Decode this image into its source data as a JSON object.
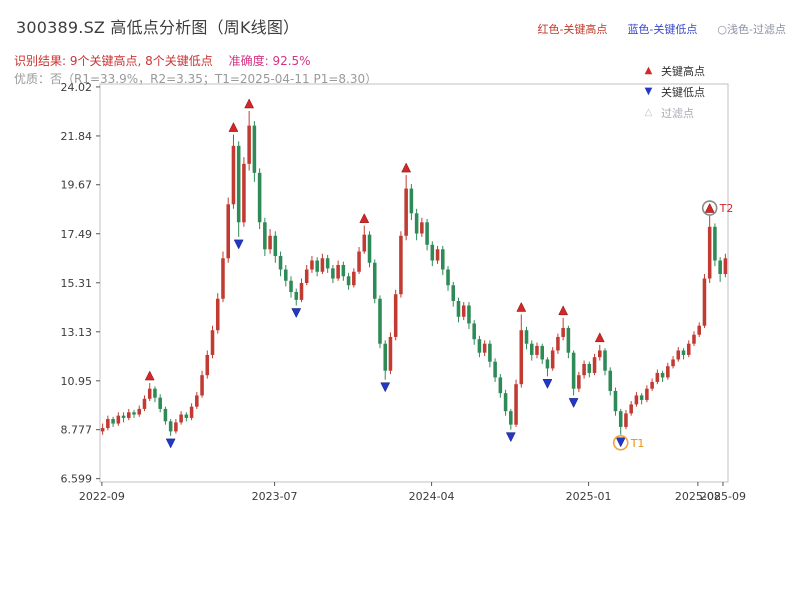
{
  "header": {
    "title": "300389.SZ 高低点分析图（周K线图）",
    "legend_top": [
      {
        "label": "红色-关键高点",
        "color": "#c0392b"
      },
      {
        "label": "蓝色-关键低点",
        "color": "#3b48c8"
      },
      {
        "label": "○浅色-过滤点",
        "color": "#8b8fa3"
      }
    ],
    "result_text": "识别结果: 9个关键高点, 8个关键低点",
    "accuracy_text": "准确度: 92.5%",
    "quality_line": "优质：否（R1=33.9%，R2=3.35；T1=2025-04-11 P1=8.30）"
  },
  "chart_data": {
    "type": "candlestick",
    "title": "300389.SZ 高低点分析图（周K线图）",
    "xlabel": "",
    "ylabel": "",
    "ylim": [
      6.45,
      24.15
    ],
    "grid": false,
    "legend_position": "top-right-inside",
    "yticks": [
      "24.02",
      "21.84",
      "19.67",
      "17.49",
      "15.31",
      "13.13",
      "10.95",
      "8.777",
      "6.599"
    ],
    "xticks": [
      {
        "label": "2022-09",
        "pos": 0.003
      },
      {
        "label": "2023-07",
        "pos": 0.278
      },
      {
        "label": "2024-04",
        "pos": 0.528
      },
      {
        "label": "2025-01",
        "pos": 0.778
      },
      {
        "label": "2025-08",
        "pos": 0.952
      },
      {
        "label": "2025-09",
        "pos": 0.992
      }
    ],
    "legend": [
      {
        "symbol": "▲",
        "label": "关键高点",
        "color": "#d62728"
      },
      {
        "symbol": "▼",
        "label": "关键低点",
        "color": "#2438c8"
      },
      {
        "symbol": "△",
        "label": "过滤点",
        "color": "#b9c0d6"
      }
    ],
    "colors": {
      "up": "#c23b33",
      "down": "#2e8b57",
      "key_high": "#d62728",
      "key_low": "#2438c8",
      "filtered": "#b9c0d6",
      "axis": "#555555",
      "spine": "#c0c0c0",
      "tick_label": "#3c3c3c"
    },
    "candles": [
      [
        8.7,
        9.05,
        8.55,
        8.85
      ],
      [
        8.85,
        9.4,
        8.75,
        9.25
      ],
      [
        9.25,
        9.35,
        8.9,
        9.05
      ],
      [
        9.05,
        9.55,
        8.95,
        9.4
      ],
      [
        9.4,
        9.55,
        9.1,
        9.3
      ],
      [
        9.3,
        9.7,
        9.2,
        9.55
      ],
      [
        9.55,
        9.65,
        9.3,
        9.45
      ],
      [
        9.45,
        9.85,
        9.35,
        9.7
      ],
      [
        9.7,
        10.3,
        9.6,
        10.15
      ],
      [
        10.15,
        10.85,
        10.05,
        10.6
      ],
      [
        10.6,
        10.7,
        10.0,
        10.2
      ],
      [
        10.2,
        10.35,
        9.55,
        9.7
      ],
      [
        9.7,
        9.8,
        9.0,
        9.15
      ],
      [
        9.15,
        9.25,
        8.5,
        8.7
      ],
      [
        8.7,
        9.25,
        8.6,
        9.1
      ],
      [
        9.1,
        9.6,
        9.0,
        9.45
      ],
      [
        9.45,
        9.55,
        9.15,
        9.3
      ],
      [
        9.3,
        9.95,
        9.2,
        9.8
      ],
      [
        9.8,
        10.45,
        9.7,
        10.3
      ],
      [
        10.3,
        11.4,
        10.2,
        11.2
      ],
      [
        11.2,
        12.3,
        11.05,
        12.1
      ],
      [
        12.1,
        13.4,
        11.95,
        13.2
      ],
      [
        13.2,
        14.85,
        13.05,
        14.6
      ],
      [
        14.6,
        16.7,
        14.45,
        16.4
      ],
      [
        16.4,
        19.1,
        16.2,
        18.8
      ],
      [
        18.8,
        21.9,
        18.6,
        21.4
      ],
      [
        21.4,
        21.6,
        17.35,
        18.0
      ],
      [
        18.0,
        20.9,
        17.8,
        20.6
      ],
      [
        20.6,
        22.95,
        20.3,
        22.3
      ],
      [
        22.3,
        22.5,
        19.8,
        20.2
      ],
      [
        20.2,
        20.4,
        17.7,
        18.0
      ],
      [
        18.0,
        18.2,
        16.5,
        16.8
      ],
      [
        16.8,
        17.7,
        16.6,
        17.4
      ],
      [
        17.4,
        17.6,
        16.2,
        16.5
      ],
      [
        16.5,
        16.7,
        15.6,
        15.9
      ],
      [
        15.9,
        16.1,
        15.15,
        15.4
      ],
      [
        15.4,
        15.6,
        14.65,
        14.9
      ],
      [
        14.9,
        15.05,
        14.3,
        14.55
      ],
      [
        14.55,
        15.5,
        14.45,
        15.3
      ],
      [
        15.3,
        16.1,
        15.2,
        15.9
      ],
      [
        15.9,
        16.5,
        15.75,
        16.3
      ],
      [
        16.3,
        16.45,
        15.6,
        15.8
      ],
      [
        15.8,
        16.6,
        15.7,
        16.4
      ],
      [
        16.4,
        16.55,
        15.75,
        15.95
      ],
      [
        15.95,
        16.1,
        15.3,
        15.5
      ],
      [
        15.5,
        16.3,
        15.4,
        16.1
      ],
      [
        16.1,
        16.25,
        15.4,
        15.6
      ],
      [
        15.6,
        15.75,
        15.0,
        15.2
      ],
      [
        15.2,
        15.95,
        15.1,
        15.8
      ],
      [
        15.8,
        16.9,
        15.7,
        16.7
      ],
      [
        16.7,
        17.85,
        16.6,
        17.45
      ],
      [
        17.45,
        17.6,
        16.0,
        16.2
      ],
      [
        16.2,
        16.35,
        14.4,
        14.6
      ],
      [
        14.6,
        14.75,
        12.4,
        12.6
      ],
      [
        12.6,
        12.75,
        11.0,
        11.4
      ],
      [
        11.4,
        13.1,
        11.25,
        12.9
      ],
      [
        12.9,
        15.0,
        12.75,
        14.8
      ],
      [
        14.8,
        17.6,
        14.65,
        17.4
      ],
      [
        17.4,
        20.1,
        17.2,
        19.5
      ],
      [
        19.5,
        19.7,
        18.1,
        18.4
      ],
      [
        18.4,
        18.6,
        17.2,
        17.5
      ],
      [
        17.5,
        18.2,
        17.35,
        18.0
      ],
      [
        18.0,
        18.15,
        16.75,
        17.0
      ],
      [
        17.0,
        17.15,
        16.05,
        16.3
      ],
      [
        16.3,
        16.95,
        16.15,
        16.8
      ],
      [
        16.8,
        16.95,
        15.65,
        15.9
      ],
      [
        15.9,
        16.05,
        14.95,
        15.2
      ],
      [
        15.2,
        15.35,
        14.25,
        14.5
      ],
      [
        14.5,
        14.65,
        13.55,
        13.8
      ],
      [
        13.8,
        14.45,
        13.65,
        14.3
      ],
      [
        14.3,
        14.45,
        13.25,
        13.5
      ],
      [
        13.5,
        13.65,
        12.55,
        12.8
      ],
      [
        12.8,
        12.95,
        12.0,
        12.2
      ],
      [
        12.2,
        12.75,
        12.05,
        12.6
      ],
      [
        12.6,
        12.75,
        11.55,
        11.8
      ],
      [
        11.8,
        11.95,
        10.9,
        11.1
      ],
      [
        11.1,
        11.25,
        10.2,
        10.4
      ],
      [
        10.4,
        10.55,
        9.4,
        9.6
      ],
      [
        9.6,
        9.7,
        8.78,
        9.0
      ],
      [
        9.0,
        11.0,
        8.9,
        10.8
      ],
      [
        10.8,
        13.9,
        10.65,
        13.2
      ],
      [
        13.2,
        13.35,
        12.35,
        12.6
      ],
      [
        12.6,
        12.75,
        11.85,
        12.1
      ],
      [
        12.1,
        12.65,
        11.95,
        12.5
      ],
      [
        12.5,
        12.6,
        11.7,
        11.9
      ],
      [
        11.9,
        12.0,
        11.15,
        11.5
      ],
      [
        11.5,
        12.45,
        11.4,
        12.3
      ],
      [
        12.3,
        13.05,
        12.15,
        12.9
      ],
      [
        12.9,
        13.75,
        12.75,
        13.3
      ],
      [
        13.3,
        13.4,
        11.95,
        12.2
      ],
      [
        12.2,
        12.3,
        10.3,
        10.6
      ],
      [
        10.6,
        11.35,
        10.45,
        11.2
      ],
      [
        11.2,
        11.85,
        11.05,
        11.7
      ],
      [
        11.7,
        11.8,
        11.1,
        11.3
      ],
      [
        11.3,
        12.15,
        11.2,
        12.0
      ],
      [
        12.0,
        12.55,
        11.85,
        12.3
      ],
      [
        12.3,
        12.4,
        11.2,
        11.4
      ],
      [
        11.4,
        11.55,
        10.3,
        10.5
      ],
      [
        10.5,
        10.65,
        9.4,
        9.6
      ],
      [
        9.6,
        9.7,
        8.55,
        8.9
      ],
      [
        8.9,
        9.65,
        8.8,
        9.5
      ],
      [
        9.5,
        10.05,
        9.4,
        9.9
      ],
      [
        9.9,
        10.45,
        9.8,
        10.3
      ],
      [
        10.3,
        10.4,
        9.9,
        10.1
      ],
      [
        10.1,
        10.75,
        10.0,
        10.6
      ],
      [
        10.6,
        11.05,
        10.5,
        10.9
      ],
      [
        10.9,
        11.45,
        10.8,
        11.3
      ],
      [
        11.3,
        11.4,
        10.9,
        11.1
      ],
      [
        11.1,
        11.75,
        11.0,
        11.6
      ],
      [
        11.6,
        12.05,
        11.5,
        11.9
      ],
      [
        11.9,
        12.45,
        11.8,
        12.3
      ],
      [
        12.3,
        12.4,
        11.9,
        12.1
      ],
      [
        12.1,
        12.75,
        12.0,
        12.6
      ],
      [
        12.6,
        13.15,
        12.5,
        13.0
      ],
      [
        13.0,
        13.55,
        12.9,
        13.4
      ],
      [
        13.4,
        15.7,
        13.3,
        15.5
      ],
      [
        15.5,
        18.3,
        15.3,
        17.8
      ],
      [
        17.8,
        17.95,
        16.05,
        16.3
      ],
      [
        16.3,
        16.45,
        15.35,
        15.7
      ],
      [
        15.7,
        16.6,
        15.55,
        16.4
      ]
    ],
    "key_high_indices": [
      9,
      25,
      28,
      50,
      58,
      80,
      88,
      95,
      116
    ],
    "key_low_indices": [
      13,
      26,
      37,
      54,
      78,
      85,
      90,
      99
    ],
    "filtered_indices": [],
    "annotations": [
      {
        "label": "T1",
        "index": 99,
        "anchor": "low",
        "text_color": "#e8930c",
        "ring_color": "#f2a33c"
      },
      {
        "label": "T2",
        "index": 116,
        "anchor": "high",
        "text_color": "#d62728",
        "ring_color": "#8a8a8a"
      }
    ]
  }
}
